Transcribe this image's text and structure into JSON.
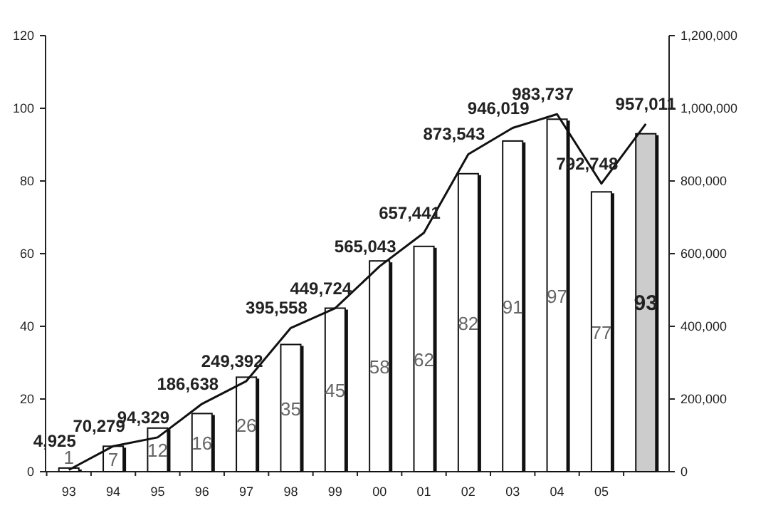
{
  "chart_data": {
    "type": "bar",
    "categories": [
      "93",
      "94",
      "95",
      "96",
      "97",
      "98",
      "99",
      "00",
      "01",
      "02",
      "03",
      "04",
      "05",
      null
    ],
    "series": [
      {
        "colors": [
          "#ffffff",
          "#ffffff",
          "#ffffff",
          "#ffffff",
          "#ffffff",
          "#ffffff",
          "#ffffff",
          "#ffffff",
          "#ffffff",
          "#ffffff",
          "#ffffff",
          "#ffffff",
          "#ffffff",
          "#cccccc"
        ],
        "values": [
          1,
          7,
          12,
          16,
          26,
          35,
          45,
          58,
          62,
          82,
          91,
          97,
          77,
          93
        ]
      },
      {
        "type": "line",
        "axis": "y2",
        "color": "#111111",
        "values": [
          4925,
          70279,
          94329,
          186638,
          249392,
          395558,
          449724,
          565043,
          657441,
          873543,
          946019,
          983737,
          792748,
          957011
        ],
        "value_labels": [
          "4,925",
          "70,279",
          "94,329",
          "186,638",
          "249,392",
          "395,558",
          "449,724",
          "565,043",
          "657,441",
          "873,543",
          "946,019",
          "983,737",
          "792,748",
          "957,011"
        ]
      }
    ],
    "ylim": [
      0,
      120
    ],
    "yticks": [
      0,
      20,
      40,
      60,
      80,
      100,
      120
    ],
    "y2lim": [
      0,
      1200000
    ],
    "y2ticks": [
      0,
      {
        "value": 200000,
        "label": "200,000"
      },
      {
        "value": 400000,
        "label": "400,000"
      },
      {
        "value": 600000,
        "label": "600,000"
      },
      {
        "value": 800000,
        "label": "800,000"
      },
      {
        "value": 1000000,
        "label": "1,000,000"
      },
      {
        "value": 1200000,
        "label": "1,200,000"
      }
    ],
    "data_labels": true,
    "marker": "none",
    "line_style": "solid"
  }
}
